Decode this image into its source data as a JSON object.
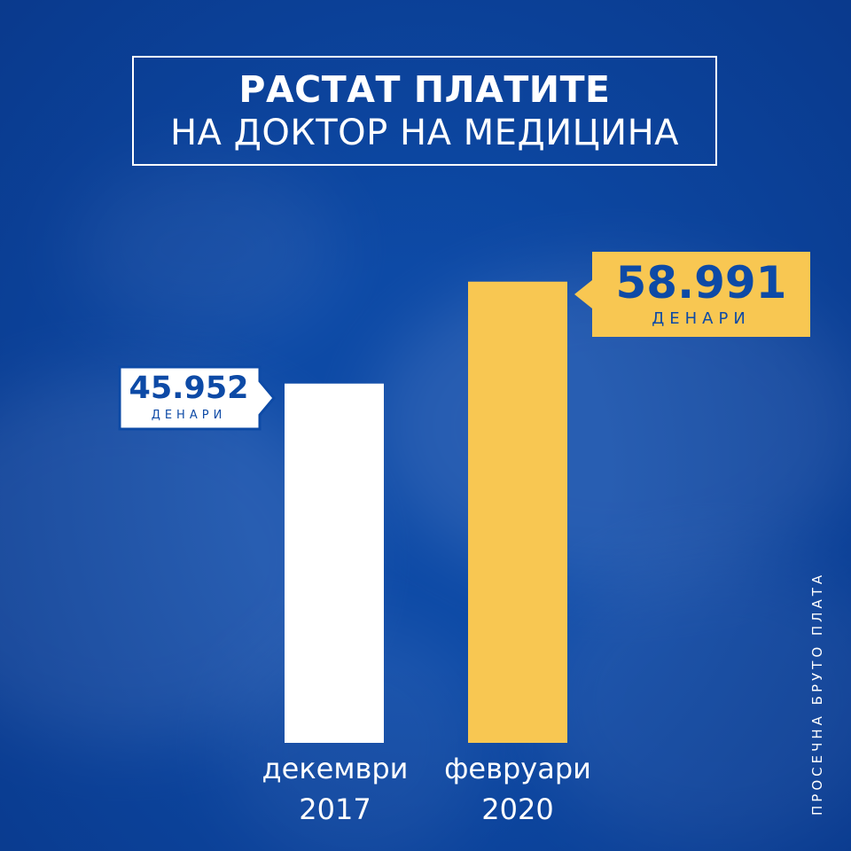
{
  "title": {
    "line1": "РАСТАТ ПЛАТИТЕ",
    "line2": "НА ДОКТОР НА МЕДИЦИНА"
  },
  "side_note": "ПРОСЕЧНА БРУТО ПЛАТА",
  "colors": {
    "background": "#0d4aa6",
    "bar_2017": "#ffffff",
    "bar_2020": "#f8c752",
    "text_dark": "#0d4aa6"
  },
  "chart_data": {
    "type": "bar",
    "title": "РАСТАТ ПЛАТИТЕ НА ДОКТОР НА МЕДИЦИНА",
    "categories": [
      "декември 2017",
      "февруари 2020"
    ],
    "category_lines": [
      [
        "декември",
        "2017"
      ],
      [
        "февруари",
        "2020"
      ]
    ],
    "values": [
      45952,
      58991
    ],
    "value_labels": [
      "45.952",
      "58.991"
    ],
    "unit": "ДЕНАРИ",
    "bar_colors": [
      "#ffffff",
      "#f8c752"
    ],
    "ylim": [
      0,
      61000
    ],
    "grid": false,
    "legend": "none"
  }
}
